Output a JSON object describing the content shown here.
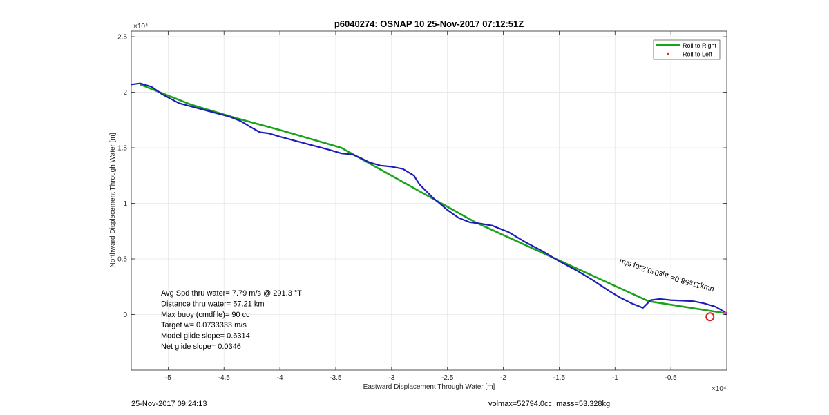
{
  "chart_data": {
    "type": "line",
    "title": "p6040274: OSNAP 10 25-Nov-2017 07:12:51Z",
    "xlabel": "Eastward Displacement Through Water [m]",
    "ylabel": "Northward Displacement Through Water [m]",
    "x_exponent_label": "×10⁴",
    "y_exponent_label": "×10⁴",
    "xlim": [
      -53300,
      0
    ],
    "ylim": [
      -5000,
      25500
    ],
    "x_ticks": [
      -50000,
      -45000,
      -40000,
      -35000,
      -30000,
      -25000,
      -20000,
      -15000,
      -10000,
      -5000
    ],
    "x_tick_labels": [
      "-5",
      "-4.5",
      "-4",
      "-3.5",
      "-3",
      "-2.5",
      "-2",
      "-1.5",
      "-1",
      "-0.5"
    ],
    "y_ticks": [
      0,
      5000,
      10000,
      15000,
      20000,
      25000
    ],
    "y_tick_labels": [
      "0",
      "0.5",
      "1",
      "1.5",
      "2",
      "2.5"
    ],
    "grid": true,
    "legend_position": "top-right",
    "legend": [
      {
        "label": "Roll to Right",
        "color": "#1aa31a",
        "marker": "line"
      },
      {
        "label": "Roll to Left",
        "color": "#e0201b",
        "marker": "dot"
      }
    ],
    "series": [
      {
        "name": "Roll to Right",
        "color": "#1aa31a",
        "x": [
          -52500,
          -48000,
          -44000,
          -40000,
          -34500,
          -22500,
          -7000,
          0
        ],
        "y": [
          20700,
          18900,
          17700,
          16600,
          15000,
          8300,
          1200,
          100
        ]
      },
      {
        "name": "",
        "color": "#1c1cb8",
        "x": [
          -53300,
          -52500,
          -51500,
          -50500,
          -49000,
          -47500,
          -46000,
          -44500,
          -43500,
          -42500,
          -41800,
          -41000,
          -40000,
          -38500,
          -37000,
          -35500,
          -34500,
          -33500,
          -32800,
          -32000,
          -31000,
          -30000,
          -29000,
          -28000,
          -27500,
          -27000,
          -26700,
          -26300,
          -25700,
          -25000,
          -24000,
          -23000,
          -22200,
          -21000,
          -19500,
          -18000,
          -16500,
          -15000,
          -13500,
          -12000,
          -10500,
          -9500,
          -8500,
          -7500,
          -6800,
          -6000,
          -5000,
          -4000,
          -3000,
          -2000,
          -1000,
          -300,
          0
        ],
        "y": [
          20700,
          20800,
          20500,
          19800,
          19000,
          18600,
          18200,
          17800,
          17400,
          16800,
          16400,
          16300,
          16000,
          15600,
          15200,
          14800,
          14500,
          14400,
          14100,
          13700,
          13400,
          13300,
          13100,
          12500,
          11700,
          11200,
          10900,
          10500,
          10000,
          9400,
          8700,
          8300,
          8200,
          8000,
          7400,
          6500,
          5700,
          4800,
          4000,
          3100,
          2100,
          1500,
          1000,
          600,
          1300,
          1400,
          1300,
          1250,
          1200,
          1000,
          700,
          300,
          100
        ]
      }
    ],
    "markers": [
      {
        "name": "end-circle",
        "x": -1500,
        "y": -200,
        "color": "#d9231f"
      },
      {
        "name": "end-point",
        "x": 0,
        "y": 100,
        "color": "#e040e0"
      }
    ],
    "rotated_annotation": "uɯʞ11ɛ58.0= ɹɥɛ0⁴0.2ɹoɟ s/ɯ",
    "stats": [
      "Avg Spd thru water=  7.79 m/s @ 291.3 °T",
      "Distance thru water= 57.21 km",
      "Max buoy (cmdfile)= 90 cc",
      "Target w= 0.0733333 m/s",
      "Model glide slope= 0.6314",
      "Net glide slope= 0.0346"
    ],
    "footer_left": "25-Nov-2017 09:24:13",
    "footer_right": "volmax=52794.0cc, mass=53.328kg"
  }
}
